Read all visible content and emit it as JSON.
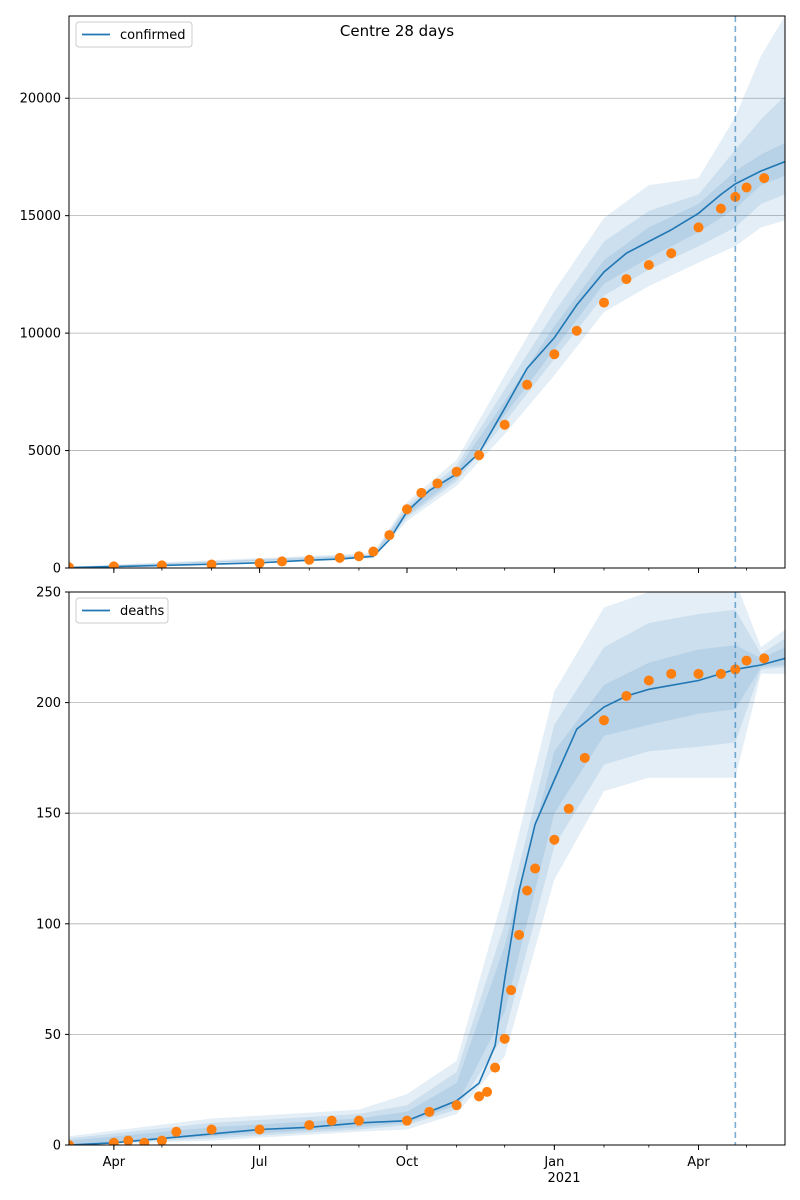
{
  "figure": {
    "suptitle": "Centre 28 days",
    "x_tick_labels": [
      "Apr",
      "Jul",
      "Oct",
      "Jan",
      "Apr"
    ],
    "x_year_label": "2021",
    "forecast_start": "2021-04-24",
    "colors": {
      "model_line": "#1f77b4",
      "band": "#1f77b4",
      "observed": "#ff7f0e",
      "grid": "#b0b0b0",
      "vline": "#1f77b4"
    }
  },
  "chart_data": [
    {
      "type": "line",
      "name": "confirmed",
      "legend": "confirmed",
      "legend_position": "upper-left",
      "grid": "y",
      "x_range": [
        "2020-03-04",
        "2021-05-25"
      ],
      "ylim": [
        0,
        23500
      ],
      "yticks": [
        0,
        5000,
        10000,
        15000,
        20000
      ],
      "ytick_labels": [
        "0",
        "5000",
        "10000",
        "15000",
        "20000"
      ],
      "model": {
        "x": [
          "2020-03-04",
          "2020-04-01",
          "2020-05-01",
          "2020-06-01",
          "2020-07-01",
          "2020-08-01",
          "2020-08-20",
          "2020-09-10",
          "2020-09-20",
          "2020-10-01",
          "2020-10-15",
          "2020-11-01",
          "2020-11-15",
          "2020-12-01",
          "2020-12-15",
          "2021-01-01",
          "2021-01-15",
          "2021-02-01",
          "2021-02-15",
          "2021-03-01",
          "2021-03-15",
          "2021-04-01",
          "2021-04-15",
          "2021-04-24",
          "2021-05-10",
          "2021-05-25"
        ],
        "y": [
          20,
          60,
          110,
          160,
          220,
          330,
          380,
          500,
          1200,
          2400,
          3300,
          4000,
          4900,
          6800,
          8500,
          9800,
          11200,
          12600,
          13400,
          13900,
          14400,
          15100,
          15900,
          16350,
          16900,
          17300
        ]
      },
      "bands": [
        {
          "level": "outer",
          "x": [
            "2020-03-04",
            "2020-09-10",
            "2020-10-01",
            "2020-11-01",
            "2020-12-01",
            "2021-01-01",
            "2021-02-01",
            "2021-03-01",
            "2021-04-01",
            "2021-04-24",
            "2021-05-10",
            "2021-05-25"
          ],
          "lower": [
            0,
            420,
            2000,
            3500,
            5700,
            8200,
            10900,
            12000,
            13000,
            13700,
            14500,
            14800
          ],
          "upper": [
            60,
            640,
            2800,
            4600,
            8200,
            11800,
            14900,
            16300,
            16600,
            19200,
            21800,
            23500
          ]
        },
        {
          "level": "middle",
          "x": [
            "2020-03-04",
            "2020-09-10",
            "2020-10-01",
            "2020-11-01",
            "2020-12-01",
            "2021-01-01",
            "2021-02-01",
            "2021-03-01",
            "2021-04-01",
            "2021-04-24",
            "2021-05-10",
            "2021-05-25"
          ],
          "lower": [
            5,
            460,
            2150,
            3700,
            6200,
            8900,
            11600,
            12700,
            13700,
            14500,
            15500,
            15900
          ],
          "upper": [
            40,
            580,
            2650,
            4350,
            7600,
            10900,
            13900,
            15200,
            15900,
            17800,
            19100,
            20100
          ]
        },
        {
          "level": "inner",
          "x": [
            "2020-03-04",
            "2020-09-10",
            "2020-10-01",
            "2020-11-01",
            "2020-12-01",
            "2021-01-01",
            "2021-02-01",
            "2021-03-01",
            "2021-04-01",
            "2021-04-24",
            "2021-05-10",
            "2021-05-25"
          ],
          "lower": [
            10,
            480,
            2250,
            3850,
            6500,
            9300,
            12100,
            13200,
            14300,
            15300,
            16300,
            16700
          ],
          "upper": [
            30,
            540,
            2550,
            4150,
            7100,
            10300,
            13100,
            14500,
            15500,
            16900,
            17600,
            18100
          ]
        }
      ],
      "observed": {
        "x": [
          "2020-03-04",
          "2020-04-01",
          "2020-05-01",
          "2020-06-01",
          "2020-07-01",
          "2020-07-15",
          "2020-08-01",
          "2020-08-20",
          "2020-09-01",
          "2020-09-10",
          "2020-09-20",
          "2020-10-01",
          "2020-10-10",
          "2020-10-20",
          "2020-11-01",
          "2020-11-15",
          "2020-12-01",
          "2020-12-15",
          "2021-01-01",
          "2021-01-15",
          "2021-02-01",
          "2021-02-15",
          "2021-03-01",
          "2021-03-15",
          "2021-04-01",
          "2021-04-15",
          "2021-04-24",
          "2021-05-01",
          "2021-05-12"
        ],
        "y": [
          30,
          70,
          110,
          150,
          210,
          280,
          350,
          430,
          500,
          700,
          1400,
          2500,
          3200,
          3600,
          4100,
          4800,
          6100,
          7800,
          9100,
          10100,
          11300,
          12300,
          12900,
          13400,
          14500,
          15300,
          15800,
          16200,
          16600
        ]
      }
    },
    {
      "type": "line",
      "name": "deaths",
      "legend": "deaths",
      "legend_position": "upper-left",
      "grid": "y",
      "x_range": [
        "2020-03-04",
        "2021-05-25"
      ],
      "ylim": [
        0,
        250
      ],
      "yticks": [
        0,
        50,
        100,
        150,
        200,
        250
      ],
      "ytick_labels": [
        "0",
        "50",
        "100",
        "150",
        "200",
        "250"
      ],
      "model": {
        "x": [
          "2020-03-04",
          "2020-04-01",
          "2020-05-01",
          "2020-06-01",
          "2020-07-01",
          "2020-08-01",
          "2020-09-01",
          "2020-10-01",
          "2020-10-15",
          "2020-11-01",
          "2020-11-15",
          "2020-11-25",
          "2020-12-01",
          "2020-12-10",
          "2020-12-20",
          "2021-01-01",
          "2021-01-15",
          "2021-02-01",
          "2021-02-15",
          "2021-03-01",
          "2021-04-01",
          "2021-04-24",
          "2021-05-10",
          "2021-05-25"
        ],
        "y": [
          0,
          1,
          3,
          5,
          7,
          8,
          10,
          11,
          15,
          20,
          28,
          45,
          75,
          115,
          145,
          165,
          188,
          198,
          203,
          206,
          210,
          215,
          217,
          220
        ]
      },
      "bands": [
        {
          "level": "outer",
          "x": [
            "2020-03-04",
            "2020-06-01",
            "2020-09-01",
            "2020-10-01",
            "2020-11-01",
            "2020-12-01",
            "2021-01-01",
            "2021-02-01",
            "2021-03-01",
            "2021-04-01",
            "2021-04-24",
            "2021-05-10",
            "2021-05-25"
          ],
          "lower": [
            0,
            2,
            6,
            7,
            14,
            40,
            120,
            160,
            166,
            166,
            166,
            213,
            213
          ],
          "upper": [
            4,
            12,
            16,
            23,
            38,
            115,
            205,
            243,
            250,
            253,
            255,
            225,
            233
          ]
        },
        {
          "level": "middle",
          "x": [
            "2020-03-04",
            "2020-06-01",
            "2020-09-01",
            "2020-10-01",
            "2020-11-01",
            "2020-12-01",
            "2021-01-01",
            "2021-02-01",
            "2021-03-01",
            "2021-04-01",
            "2021-04-24",
            "2021-05-10",
            "2021-05-25"
          ],
          "lower": [
            0,
            3,
            7,
            9,
            16,
            50,
            135,
            172,
            178,
            180,
            182,
            215,
            216
          ],
          "upper": [
            3,
            10,
            14,
            18,
            33,
            100,
            190,
            225,
            236,
            240,
            242,
            222,
            229
          ]
        },
        {
          "level": "inner",
          "x": [
            "2020-03-04",
            "2020-06-01",
            "2020-09-01",
            "2020-10-01",
            "2020-11-01",
            "2020-12-01",
            "2021-01-01",
            "2021-02-01",
            "2021-03-01",
            "2021-04-01",
            "2021-04-24",
            "2021-05-10",
            "2021-05-25"
          ],
          "lower": [
            0,
            4,
            8,
            10,
            18,
            60,
            150,
            185,
            190,
            195,
            197,
            216,
            217
          ],
          "upper": [
            2,
            8,
            12,
            15,
            28,
            90,
            178,
            208,
            218,
            224,
            226,
            220,
            225
          ]
        }
      ],
      "observed": {
        "x": [
          "2020-03-04",
          "2020-04-01",
          "2020-04-10",
          "2020-04-20",
          "2020-05-01",
          "2020-05-10",
          "2020-06-01",
          "2020-07-01",
          "2020-08-01",
          "2020-08-15",
          "2020-09-01",
          "2020-10-01",
          "2020-10-15",
          "2020-11-01",
          "2020-11-15",
          "2020-11-20",
          "2020-11-25",
          "2020-12-01",
          "2020-12-05",
          "2020-12-10",
          "2020-12-15",
          "2020-12-20",
          "2021-01-01",
          "2021-01-10",
          "2021-01-20",
          "2021-02-01",
          "2021-02-15",
          "2021-03-01",
          "2021-03-15",
          "2021-04-01",
          "2021-04-15",
          "2021-04-24",
          "2021-05-01",
          "2021-05-12"
        ],
        "y": [
          0,
          1,
          2,
          1,
          2,
          6,
          7,
          7,
          9,
          11,
          11,
          11,
          15,
          18,
          22,
          24,
          35,
          48,
          70,
          95,
          115,
          125,
          138,
          152,
          175,
          192,
          203,
          210,
          213,
          213,
          213,
          215,
          219,
          220
        ]
      }
    }
  ]
}
